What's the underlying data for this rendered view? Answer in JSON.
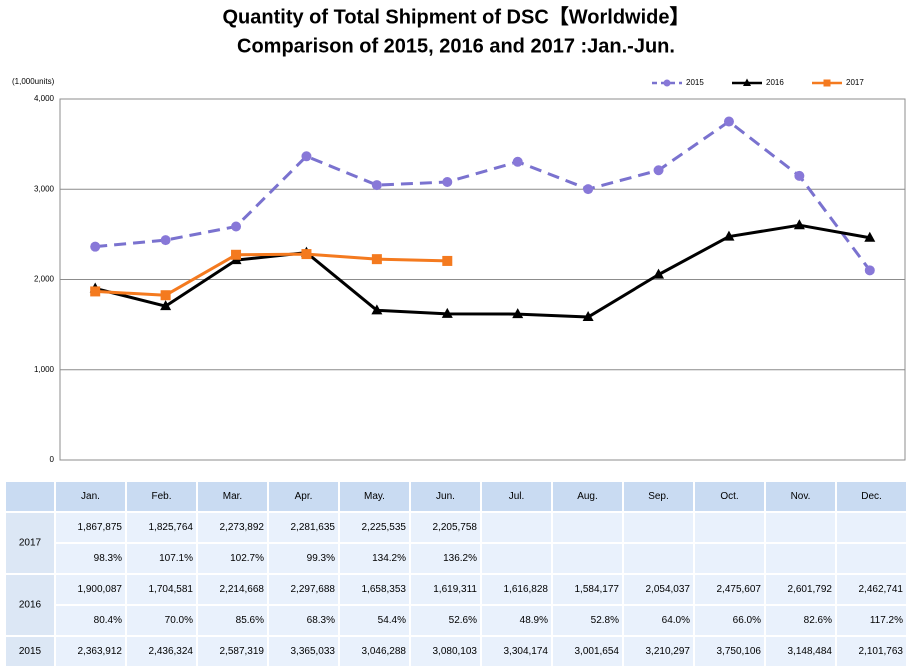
{
  "chart_data": {
    "type": "line",
    "title": "Quantity of Total Shipment of DSC【Worldwide】",
    "subtitle": "Comparison of 2015, 2016 and 2017 :Jan.-Jun.",
    "y_label": "(1,000units)",
    "categories": [
      "Jan.",
      "Feb.",
      "Mar.",
      "Apr.",
      "May.",
      "Jun.",
      "Jul.",
      "Aug.",
      "Sep.",
      "Oct.",
      "Nov.",
      "Dec."
    ],
    "ylim": [
      0,
      4000
    ],
    "yticks": [
      0,
      {
        "value": 1000,
        "label": "1,000"
      },
      {
        "value": 2000,
        "label": "2,000"
      },
      {
        "value": 3000,
        "label": "3,000"
      },
      {
        "value": 4000,
        "label": "4,000"
      }
    ],
    "grid": true,
    "legend": "top-right",
    "series": [
      {
        "name": "2015",
        "color": "#7a72cf",
        "marker": "circle",
        "dashed": true,
        "values": [
          2363.912,
          2436.324,
          2587.319,
          3365.033,
          3046.288,
          3080.103,
          3304.174,
          3001.654,
          3210.297,
          3750.106,
          3148.484,
          2101.763
        ],
        "value_labels": [
          "2,363,912",
          "2,436,324",
          "2,587,319",
          "3,365,033",
          "3,046,288",
          "3,080,103",
          "3,304,174",
          "3,001,654",
          "3,210,297",
          "3,750,106",
          "3,148,484",
          "2,101,763"
        ]
      },
      {
        "name": "2016",
        "color": "#000000",
        "marker": "triangle",
        "dashed": false,
        "values": [
          1900.087,
          1704.581,
          2214.668,
          2297.688,
          1658.353,
          1619.311,
          1616.828,
          1584.177,
          2054.037,
          2475.607,
          2601.792,
          2462.741
        ],
        "value_labels": [
          "1,900,087",
          "1,704,581",
          "2,214,668",
          "2,297,688",
          "1,658,353",
          "1,619,311",
          "1,616,828",
          "1,584,177",
          "2,054,037",
          "2,475,607",
          "2,601,792",
          "2,462,741"
        ],
        "ratio_labels": [
          "80.4%",
          "70.0%",
          "85.6%",
          "68.3%",
          "54.4%",
          "52.6%",
          "48.9%",
          "52.8%",
          "64.0%",
          "66.0%",
          "82.6%",
          "117.2%"
        ]
      },
      {
        "name": "2017",
        "color": "#f47a1f",
        "marker": "square",
        "dashed": false,
        "values": [
          1867.875,
          1825.764,
          2273.892,
          2281.635,
          2225.535,
          2205.758,
          null,
          null,
          null,
          null,
          null,
          null
        ],
        "value_labels": [
          "1,867,875",
          "1,825,764",
          "2,273,892",
          "2,281,635",
          "2,225,535",
          "2,205,758",
          null,
          null,
          null,
          null,
          null,
          null
        ],
        "ratio_labels": [
          "98.3%",
          "107.1%",
          "102.7%",
          "99.3%",
          "134.2%",
          "136.2%",
          null,
          null,
          null,
          null,
          null,
          null
        ]
      }
    ]
  }
}
